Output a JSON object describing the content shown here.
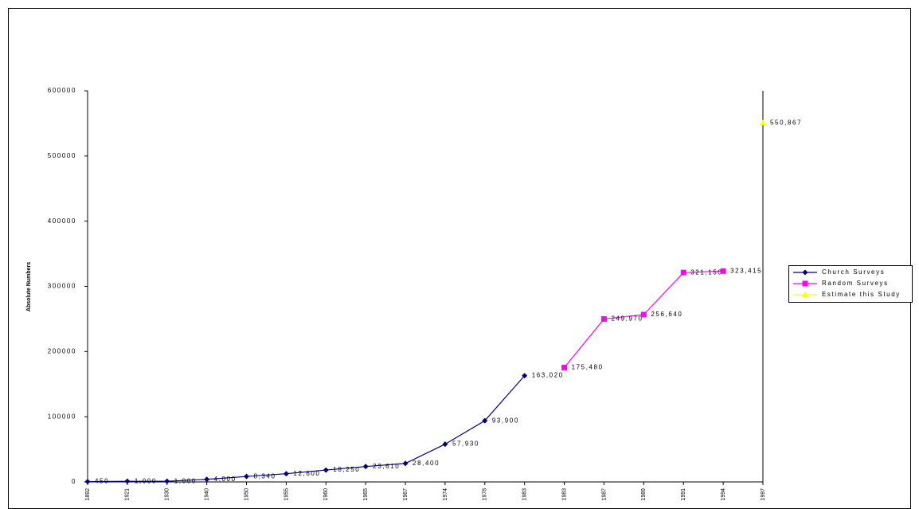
{
  "chart_data": {
    "type": "line",
    "y_label": "Absolute Numbers",
    "categories": [
      "1892",
      "1921",
      "1930",
      "1940",
      "1950",
      "1955",
      "1960",
      "1965",
      "1967",
      "1974",
      "1978",
      "1983",
      "1983",
      "1987",
      "1989",
      "1991",
      "1994",
      "1997"
    ],
    "series": [
      {
        "name": "Church Surveys",
        "color": "#000080",
        "marker": "diamond",
        "values": [
          450,
          1000,
          1000,
          4000,
          8340,
          12600,
          18250,
          23610,
          28400,
          57930,
          93900,
          163020,
          null,
          null,
          null,
          null,
          null,
          null
        ],
        "value_labels": [
          "450",
          "1,000",
          "1,000",
          "4,000",
          "8,340",
          "12,600",
          "18,250",
          "23,610",
          "28,400",
          "57,930",
          "93,900",
          "163,020",
          null,
          null,
          null,
          null,
          null,
          null
        ]
      },
      {
        "name": "Random Surveys",
        "color": "#ff00ff",
        "marker": "square",
        "values": [
          null,
          null,
          null,
          null,
          null,
          null,
          null,
          null,
          null,
          null,
          null,
          null,
          175480,
          249970,
          256640,
          321150,
          323415,
          null
        ],
        "value_labels": [
          null,
          null,
          null,
          null,
          null,
          null,
          null,
          null,
          null,
          null,
          null,
          null,
          "175,480",
          "249,970",
          "256,640",
          "321,150",
          "323,415",
          null
        ]
      },
      {
        "name": "Estimate this Study",
        "color": "#ffff00",
        "marker": "triangle",
        "values": [
          null,
          null,
          null,
          null,
          null,
          null,
          null,
          null,
          null,
          null,
          null,
          null,
          null,
          null,
          null,
          null,
          null,
          550867
        ],
        "value_labels": [
          null,
          null,
          null,
          null,
          null,
          null,
          null,
          null,
          null,
          null,
          null,
          null,
          null,
          null,
          null,
          null,
          null,
          "550,867"
        ]
      }
    ],
    "ylim": [
      0,
      600000
    ],
    "yticks": [
      0,
      100000,
      200000,
      300000,
      400000,
      500000,
      600000
    ],
    "grid": false,
    "legend": "right"
  }
}
